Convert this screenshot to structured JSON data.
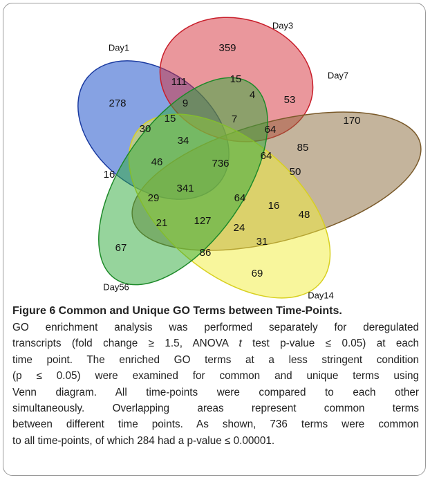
{
  "sets": [
    "Day1",
    "Day3",
    "Day7",
    "Day56",
    "Day14"
  ],
  "regions": [
    278,
    111,
    359,
    15,
    4,
    53,
    170,
    9,
    7,
    64,
    85,
    30,
    15,
    34,
    46,
    736,
    64,
    50,
    16,
    29,
    341,
    64,
    16,
    48,
    21,
    127,
    24,
    31,
    67,
    86,
    69
  ],
  "caption": {
    "title": "Figure 6 Common and Unique GO Terms between Time-Points.",
    "lines": [
      [
        {
          "text": "GO enrichment analysis was performed separately for deregulated"
        }
      ],
      [
        {
          "text": "transcripts (fold change ≥ 1.5, ANOVA "
        },
        {
          "text": "t",
          "italic": true
        },
        {
          "text": " test p-value ≤ 0.05) at each"
        }
      ],
      [
        {
          "text": "time point. The enriched GO terms at a less stringent condition"
        }
      ],
      [
        {
          "text": "(p ≤ 0.05) were examined for common and unique terms using"
        }
      ],
      [
        {
          "text": "Venn diagram. All time-points were compared to each other"
        }
      ],
      [
        {
          "text": "simultaneously. Overlapping areas represent common terms"
        }
      ],
      [
        {
          "text": "between different time points. As shown, 736 terms were common"
        }
      ],
      [
        {
          "text": "to all time-points, of which 284 had a p-value ≤ 0.00001."
        }
      ]
    ]
  }
}
